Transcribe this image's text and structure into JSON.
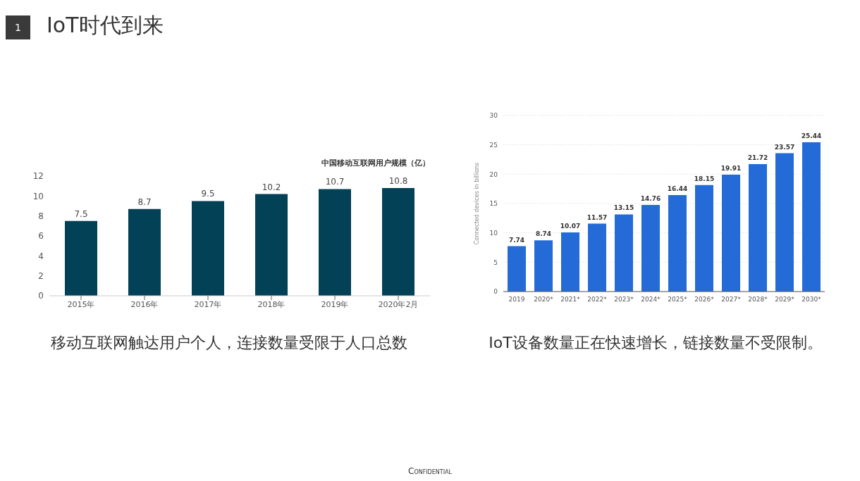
{
  "chart_data": [
    {
      "type": "bar",
      "title": "中国移动互联网用户规模（亿）",
      "categories": [
        "2015年",
        "2016年",
        "2017年",
        "2018年",
        "2019年",
        "2020年2月"
      ],
      "values": [
        7.5,
        8.7,
        9.5,
        10.2,
        10.7,
        10.8
      ],
      "color": "#024156",
      "ylim": [
        0,
        12
      ],
      "yticks": [
        0,
        2,
        4,
        6,
        8,
        10,
        12
      ],
      "data_labels": true,
      "annotations": [
        "1",
        "IoT时代到来",
        "移动互联网触达用户个人，连接数量受限于人口总数",
        "Confidential"
      ]
    },
    {
      "type": "bar",
      "ylabel": "Connected devices in billions",
      "categories": [
        "2019",
        "2020*",
        "2021*",
        "2022*",
        "2023*",
        "2024*",
        "2025*",
        "2026*",
        "2027*",
        "2028*",
        "2029*",
        "2030*"
      ],
      "values": [
        7.74,
        8.74,
        10.07,
        11.57,
        13.15,
        14.76,
        16.44,
        18.15,
        19.91,
        21.72,
        23.57,
        25.44
      ],
      "color": "#246bd8",
      "ylim": [
        0,
        30
      ],
      "yticks": [
        0,
        5,
        10,
        15,
        20,
        25,
        30
      ],
      "grid": "y",
      "data_labels": true,
      "annotations": [
        "IoT设备数量正在快速增长，链接数量不受限制。"
      ]
    }
  ]
}
